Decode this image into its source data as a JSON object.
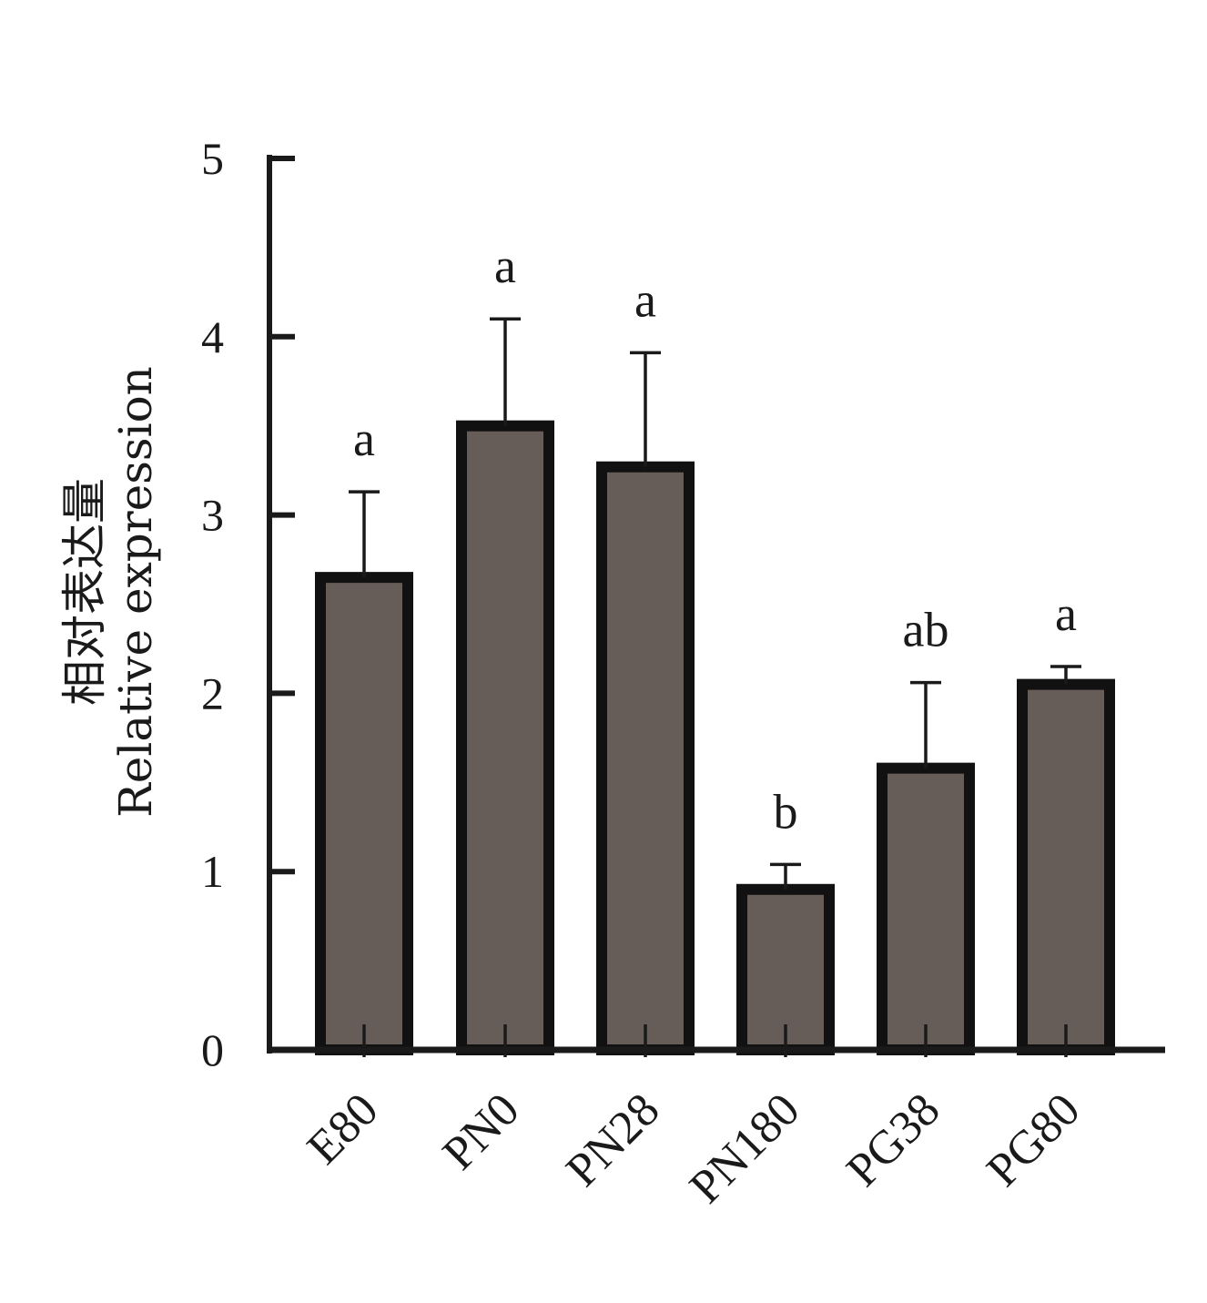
{
  "chart_data": {
    "type": "bar",
    "title": "",
    "xlabel": "",
    "ylabel_cn": "相对表达量",
    "ylabel_en": "Relative expression",
    "ylim": [
      0,
      5
    ],
    "yticks": [
      "0",
      "1",
      "2",
      "3",
      "4",
      "5"
    ],
    "categories": [
      "E80",
      "PN0",
      "PN28",
      "PN180",
      "PG38",
      "PG80"
    ],
    "values": [
      2.65,
      3.5,
      3.27,
      0.9,
      1.58,
      2.05
    ],
    "errors": [
      0.48,
      0.6,
      0.64,
      0.14,
      0.48,
      0.1
    ],
    "significance": [
      "a",
      "a",
      "a",
      "b",
      "ab",
      "a"
    ],
    "grid": false,
    "legend": "none",
    "colors": {
      "bar_fill": "#665c58",
      "bar_edge": "#111111",
      "axis": "#1a1a1a"
    }
  }
}
